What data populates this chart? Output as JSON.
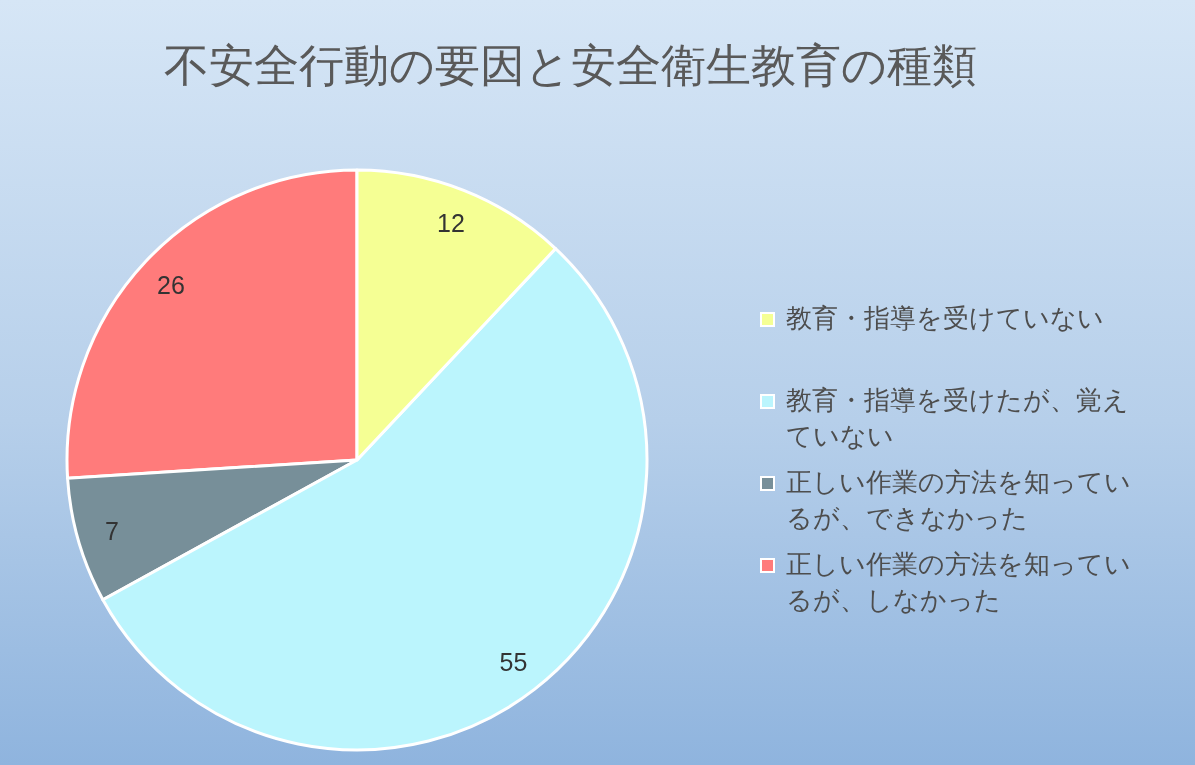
{
  "chart_data": {
    "type": "pie",
    "title": "不安全行動の要因と安全衛生教育の種類",
    "categories": [
      "教育・指導を受けていない",
      "教育・指導を受けたが、覚えていない",
      "正しい作業の方法を知っているが、できなかった",
      "正しい作業の方法を知っているが、しなかった"
    ],
    "values": [
      12,
      55,
      7,
      26
    ],
    "colors": [
      "#f5ff94",
      "#bbf5fd",
      "#778f99",
      "#ff7b7b"
    ],
    "data_labels": true,
    "legend": "right"
  }
}
